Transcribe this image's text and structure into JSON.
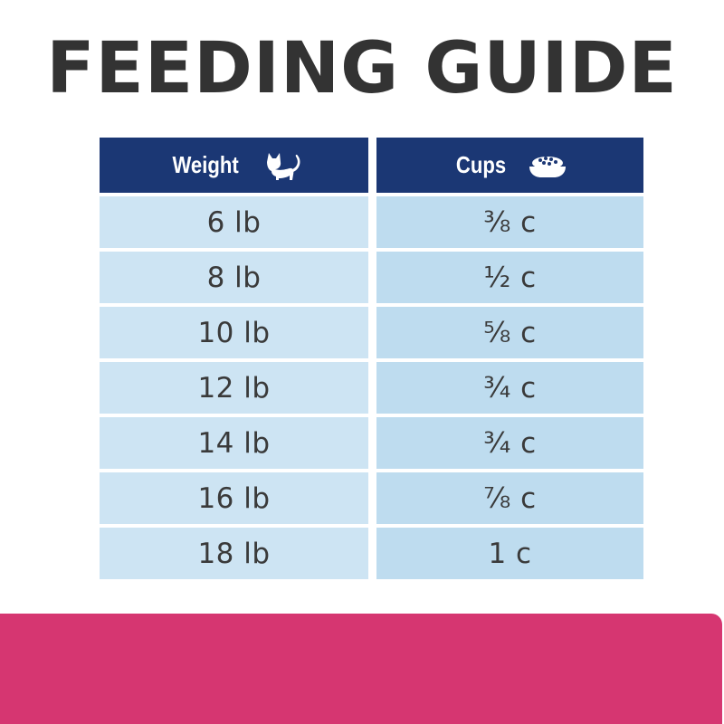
{
  "title": "FEEDING GUIDE",
  "table": {
    "headers": {
      "weight": "Weight",
      "weight_icon": "cat-icon",
      "cups": "Cups",
      "cups_icon": "food-bowl-icon"
    },
    "rows": [
      {
        "weight": "6 lb",
        "cups": "⅜ c"
      },
      {
        "weight": "8 lb",
        "cups": "½ c"
      },
      {
        "weight": "10 lb",
        "cups": "⅝ c"
      },
      {
        "weight": "12 lb",
        "cups": "¾ c"
      },
      {
        "weight": "14 lb",
        "cups": "¾ c"
      },
      {
        "weight": "16 lb",
        "cups": "⅞ c"
      },
      {
        "weight": "18 lb",
        "cups": "1 c"
      }
    ]
  },
  "colors": {
    "header_bg": "#1b3774",
    "cell_left_bg": "#cde4f3",
    "cell_right_bg": "#bedcef",
    "title_text": "#333333",
    "bottom_bar": "#d63671"
  }
}
